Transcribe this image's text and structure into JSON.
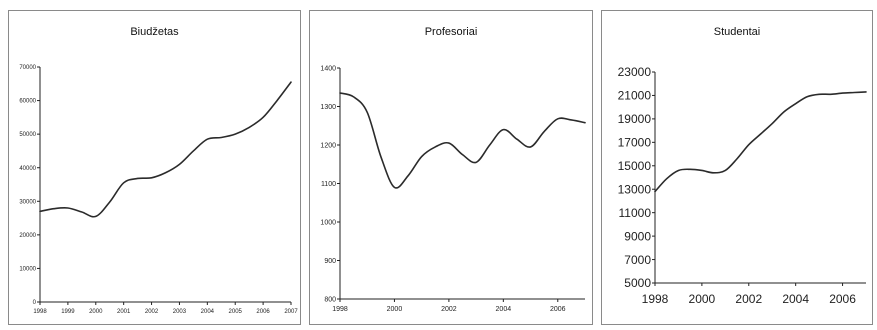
{
  "chart_data": [
    {
      "type": "line",
      "title": "Biudžetas",
      "xlabel": "",
      "ylabel": "",
      "xlim": [
        1998,
        2007
      ],
      "ylim": [
        0,
        70000
      ],
      "x_ticks": [
        "1998",
        "1999",
        "2000",
        "2001",
        "2002",
        "2003",
        "2004",
        "2005",
        "2006",
        "2007"
      ],
      "y_ticks": [
        "0",
        "10000",
        "20000",
        "30000",
        "40000",
        "50000",
        "60000",
        "70000"
      ],
      "grid": false,
      "legend": "none",
      "line_color": "#2b2b2b",
      "series": [
        {
          "x": [
            1998,
            1998.5,
            1999,
            1999.5,
            2000,
            2000.5,
            2001,
            2001.5,
            2002,
            2002.5,
            2003,
            2003.5,
            2004,
            2004.5,
            2005,
            2005.5,
            2006,
            2006.5,
            2007
          ],
          "values": [
            27000,
            27800,
            28000,
            26800,
            25500,
            29800,
            35500,
            36800,
            37000,
            38500,
            41000,
            45000,
            48500,
            49000,
            50000,
            52000,
            55000,
            60000,
            65500
          ]
        }
      ]
    },
    {
      "type": "line",
      "title": "Profesoriai",
      "xlabel": "",
      "ylabel": "",
      "xlim": [
        1998,
        2007
      ],
      "ylim": [
        800,
        1400
      ],
      "x_ticks": [
        "1998",
        "2000",
        "2002",
        "2004",
        "2006"
      ],
      "y_ticks": [
        "800",
        "900",
        "1000",
        "1100",
        "1200",
        "1300",
        "1400"
      ],
      "grid": false,
      "legend": "none",
      "line_color": "#2b2b2b",
      "series": [
        {
          "x": [
            1998,
            1998.5,
            1999,
            1999.5,
            2000,
            2000.5,
            2001,
            2001.5,
            2002,
            2002.5,
            2003,
            2003.5,
            2004,
            2004.5,
            2005,
            2005.5,
            2006,
            2006.5,
            2007
          ],
          "values": [
            1335,
            1325,
            1285,
            1170,
            1090,
            1120,
            1170,
            1195,
            1205,
            1175,
            1155,
            1200,
            1240,
            1215,
            1195,
            1235,
            1268,
            1265,
            1258
          ]
        }
      ]
    },
    {
      "type": "line",
      "title": "Studentai",
      "xlabel": "",
      "ylabel": "",
      "xlim": [
        1998,
        2007
      ],
      "ylim": [
        5000,
        23000
      ],
      "x_ticks": [
        "1998",
        "2000",
        "2002",
        "2004",
        "2006"
      ],
      "y_ticks": [
        "5000",
        "7000",
        "9000",
        "11000",
        "13000",
        "15000",
        "17000",
        "19000",
        "21000",
        "23000"
      ],
      "grid": false,
      "legend": "none",
      "line_color": "#2b2b2b",
      "series": [
        {
          "x": [
            1998,
            1998.5,
            1999,
            1999.5,
            2000,
            2000.5,
            2001,
            2001.5,
            2002,
            2002.5,
            2003,
            2003.5,
            2004,
            2004.5,
            2005,
            2005.5,
            2006,
            2006.5,
            2007
          ],
          "values": [
            12800,
            13900,
            14600,
            14700,
            14600,
            14400,
            14600,
            15600,
            16800,
            17700,
            18600,
            19600,
            20300,
            20900,
            21100,
            21100,
            21200,
            21250,
            21300
          ]
        }
      ]
    }
  ]
}
